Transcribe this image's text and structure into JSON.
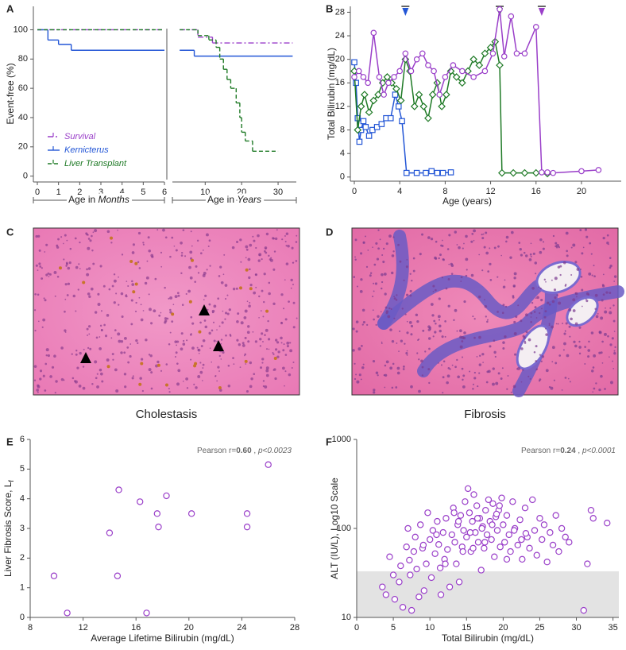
{
  "chart_data": [
    {
      "type": "km",
      "label": "A",
      "ylabel": "Event-free (%)",
      "xlabels": [
        [
          "Age in ",
          "Months"
        ],
        [
          "Age in ",
          "Years"
        ]
      ],
      "xlim_months": [
        0,
        6
      ],
      "xticks_months": [
        0,
        1,
        2,
        3,
        4,
        5,
        6
      ],
      "xlim_years": [
        1,
        35
      ],
      "xticks_years": [
        10,
        20,
        30
      ],
      "ylim": [
        -4,
        116
      ],
      "yticks": [
        0,
        20,
        40,
        60,
        80,
        100
      ],
      "series": [
        {
          "name": "Survival",
          "color": "#9a3fc9",
          "dash": "7 3 2 3",
          "x_months": [
            0,
            6
          ],
          "values_months": [
            100,
            100
          ],
          "x_years": [
            3,
            8,
            12,
            34
          ],
          "values_years": [
            100,
            95,
            91,
            91
          ]
        },
        {
          "name": "Kernicterus",
          "color": "#2356d6",
          "dash": "none",
          "x_months": [
            0,
            0.5,
            1,
            1.6,
            6
          ],
          "values_months": [
            100,
            93,
            90,
            86,
            86
          ],
          "x_years": [
            3,
            7,
            34
          ],
          "values_years": [
            86,
            82,
            82
          ]
        },
        {
          "name": "Liver Transplant",
          "color": "#1f7a26",
          "dash": "5 3",
          "x_months": [
            0,
            6
          ],
          "values_months": [
            100,
            100
          ],
          "x_years": [
            3,
            8,
            11,
            13,
            14,
            15,
            16,
            17,
            18.5,
            19.5,
            20,
            21,
            23,
            30
          ],
          "values_years": [
            100,
            96,
            93,
            88,
            80,
            73,
            66,
            60,
            50,
            40,
            30,
            24,
            17,
            17
          ]
        }
      ]
    },
    {
      "type": "line",
      "label": "B",
      "ylabel": "Total Bilirubin (mg/dL)",
      "xlabel": "Age (years)",
      "xlim": [
        -0.35,
        23.5
      ],
      "xticks": [
        0,
        4,
        8,
        12,
        16,
        20
      ],
      "ylim": [
        -0.7,
        29
      ],
      "yticks": [
        0,
        4,
        8,
        12,
        16,
        20,
        24,
        28
      ],
      "series": [
        {
          "color": "#2356d6",
          "marker": "square",
          "event_x": 4.5,
          "x": [
            0,
            0.15,
            0.3,
            0.45,
            0.6,
            0.8,
            1,
            1.3,
            1.6,
            2,
            2.4,
            2.8,
            3.2,
            3.6,
            3.9,
            4.2,
            4.6,
            5.5,
            6.3,
            6.8,
            7.3,
            7.8,
            8.5
          ],
          "values": [
            19.5,
            16,
            10,
            6,
            8,
            9.5,
            8.5,
            7,
            8,
            8.5,
            9,
            10,
            10,
            14,
            12,
            9.5,
            0.7,
            0.7,
            0.7,
            1,
            0.7,
            0.7,
            0.8
          ]
        },
        {
          "color": "#1f7a26",
          "marker": "diamond",
          "event_x": 12.8,
          "x": [
            0,
            0.3,
            0.6,
            0.9,
            1.3,
            1.7,
            2.1,
            2.5,
            2.9,
            3.3,
            3.7,
            4.1,
            4.5,
            4.9,
            5.3,
            5.7,
            6.1,
            6.5,
            6.9,
            7.3,
            7.7,
            8.1,
            8.5,
            9,
            9.5,
            10,
            10.5,
            11,
            11.5,
            12,
            12.4,
            12.8,
            13,
            14,
            15,
            16,
            17
          ],
          "values": [
            18,
            8,
            12,
            14,
            11,
            13,
            14,
            16,
            17,
            16,
            15,
            13,
            20,
            18,
            12,
            14,
            12,
            10,
            14,
            16,
            12,
            14,
            18,
            17,
            16,
            18,
            20,
            19,
            21,
            22,
            23,
            19,
            0.7,
            0.7,
            0.7,
            0.7,
            0.6
          ]
        },
        {
          "color": "#9a3fc9",
          "marker": "circle",
          "event_x": 16.5,
          "x": [
            0,
            0.4,
            0.8,
            1.2,
            1.7,
            2.2,
            2.6,
            3,
            3.5,
            4,
            4.5,
            5,
            5.5,
            6,
            6.5,
            7,
            7.5,
            8,
            8.7,
            9.5,
            10.5,
            11.5,
            12.2,
            12.8,
            13.2,
            13.8,
            14.3,
            15,
            16,
            16.5,
            17,
            17.5,
            20,
            21.5
          ],
          "values": [
            17,
            18,
            17,
            16,
            24.5,
            17,
            14,
            16,
            17,
            18,
            21,
            18,
            20,
            21,
            19,
            18,
            14,
            17,
            19,
            18,
            17,
            18,
            21,
            28.5,
            20.5,
            27.3,
            21,
            21,
            25.5,
            0.8,
            0.8,
            0.7,
            1,
            1.2
          ]
        }
      ]
    },
    {
      "type": "image",
      "label": "C",
      "caption": "Cholestasis"
    },
    {
      "type": "image",
      "label": "D",
      "caption": "Fibrosis"
    },
    {
      "type": "scatter",
      "label": "E",
      "ylabel": "Liver Fibrosis Score, L",
      "ylabel_sub": "f",
      "xlabel": "Average Lifetime Bilirubin (mg/dL)",
      "annotation": [
        "Pearson r=",
        "0.60",
        " , ",
        "p<0.0023"
      ],
      "color": "#9a3fc9",
      "xlim": [
        8,
        28
      ],
      "xticks": [
        8,
        12,
        16,
        20,
        24,
        28
      ],
      "ylim": [
        0,
        6
      ],
      "yticks": [
        0,
        1,
        2,
        3,
        4,
        5,
        6
      ],
      "x": [
        9.8,
        10.8,
        14,
        14.6,
        14.7,
        16.3,
        16.8,
        17.6,
        17.7,
        18.3,
        20.2,
        24.4,
        24.4,
        26
      ],
      "values": [
        1.4,
        0.15,
        2.85,
        1.4,
        4.3,
        3.9,
        0.15,
        3.5,
        3.05,
        4.1,
        3.5,
        3.5,
        3.05,
        5.15
      ]
    },
    {
      "type": "scatter",
      "label": "F",
      "ylabel": "ALT (IU/L), Log10 Scale",
      "xlabel": "Total Bilirubin (mg/dL)",
      "annotation": [
        "Pearson r=",
        "0.24",
        " , ",
        "p<0.0001"
      ],
      "color": "#9a3fc9",
      "log_y": true,
      "shaded_below": 33,
      "xlim": [
        0,
        35.8
      ],
      "xticks": [
        0,
        5,
        10,
        15,
        20,
        25,
        30,
        35
      ],
      "ylim": [
        10,
        1000
      ],
      "yticks": [
        10,
        100,
        1000
      ],
      "x": [
        3.5,
        4,
        4.5,
        5,
        5.2,
        5.8,
        6,
        6.3,
        6.8,
        7,
        7.2,
        7.5,
        7.8,
        8,
        8.2,
        8.5,
        8.7,
        9,
        9.2,
        9.5,
        9.7,
        10,
        10.2,
        10.4,
        10.7,
        11,
        11.2,
        11.5,
        11.8,
        12,
        12.2,
        12.4,
        12.7,
        13,
        13.2,
        13.4,
        13.6,
        13.8,
        14,
        14.2,
        14.4,
        14.6,
        14.8,
        15,
        15.2,
        15.4,
        15.6,
        15.8,
        16,
        16.2,
        16.4,
        16.6,
        16.8,
        17,
        17.2,
        17.4,
        17.6,
        17.8,
        18,
        18.2,
        18.4,
        18.6,
        18.8,
        19,
        19.2,
        19.4,
        19.6,
        19.8,
        20,
        20.2,
        20.5,
        20.8,
        21,
        21.3,
        21.6,
        22,
        22.3,
        22.6,
        23,
        23.3,
        23.6,
        24,
        24.3,
        24.6,
        25,
        25.3,
        25.6,
        26,
        26.4,
        26.8,
        27.2,
        27.6,
        28,
        28.5,
        29,
        31,
        31.5,
        32,
        32.3,
        34.2,
        7.3,
        9.1,
        10.9,
        12.1,
        13.3,
        14.5,
        15.5,
        16.5,
        17.5,
        18.5,
        19.5,
        20.5,
        21.5,
        22.5,
        11.4,
        13.9,
        15.9,
        17.1,
        19.1,
        23.1
      ],
      "values": [
        22,
        18,
        48,
        30,
        16,
        25,
        38,
        13,
        62,
        100,
        44,
        12,
        55,
        80,
        35,
        17,
        110,
        60,
        20,
        40,
        150,
        75,
        28,
        95,
        52,
        120,
        66,
        18,
        90,
        45,
        130,
        58,
        22,
        85,
        170,
        70,
        40,
        110,
        25,
        140,
        62,
        95,
        200,
        80,
        280,
        150,
        55,
        120,
        240,
        90,
        180,
        70,
        130,
        34,
        105,
        60,
        160,
        85,
        210,
        120,
        75,
        190,
        48,
        135,
        95,
        160,
        62,
        220,
        110,
        70,
        140,
        85,
        55,
        200,
        100,
        65,
        125,
        45,
        170,
        80,
        60,
        210,
        95,
        50,
        130,
        75,
        110,
        42,
        90,
        65,
        140,
        55,
        100,
        80,
        70,
        12,
        40,
        160,
        130,
        115,
        30,
        65,
        85,
        40,
        150,
        55,
        90,
        130,
        70,
        110,
        180,
        45,
        95,
        75,
        36,
        120,
        60,
        100,
        145,
        88
      ]
    }
  ]
}
